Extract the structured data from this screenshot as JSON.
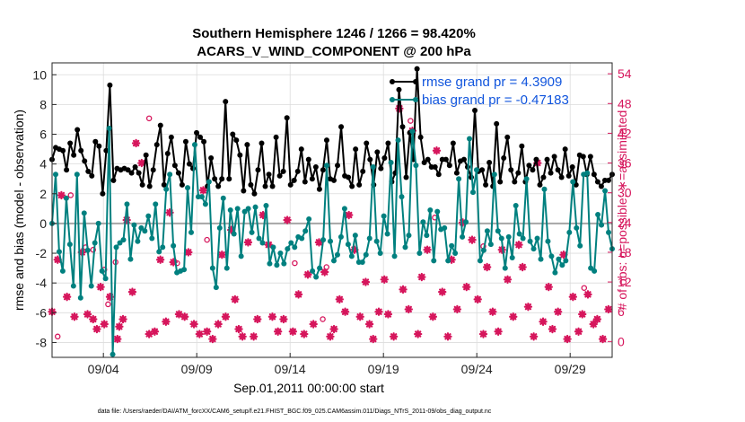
{
  "chart_data": {
    "type": "line",
    "title_line1": "Southern Hemisphere 1246 / 1266 = 98.420%",
    "title_line2": "ACARS_V_WIND_COMPONENT @ 200 hPa",
    "ylabel_left": "rmse and bias (model - observation)",
    "ylabel_right": "# of obs: o=possible; ∗=assimilated",
    "xlabel": "Sep.01,2011 00:00:00 start",
    "footnote": "data file: /Users/raeder/DAI/ATM_forcXX/CAM6_setup/f.e21.FHIST_BGC.f09_025.CAM6assim.011/Diags_NTrS_2011-09/obs_diag_output.nc",
    "ylim_left": [
      -9,
      10.8
    ],
    "yticks_left": [
      "-8",
      "-6",
      "-4",
      "-2",
      "0",
      "2",
      "4",
      "6",
      "8",
      "10"
    ],
    "ylim_right": [
      -3.2,
      56.2
    ],
    "yticks_right": [
      "0",
      "6",
      "12",
      "18",
      "24",
      "30",
      "36",
      "42",
      "48",
      "54"
    ],
    "xlim_days": [
      0,
      30
    ],
    "xtick_labels": [
      "09/04",
      "09/09",
      "09/14",
      "09/19",
      "09/24",
      "09/29"
    ],
    "xtick_days": [
      2.75,
      7.75,
      12.75,
      17.75,
      22.75,
      27.75
    ],
    "grid": true,
    "legend_position": "top-right",
    "series": [
      {
        "name": "rmse grand pr = 4.3909",
        "color": "#000000",
        "values": [
          4.3,
          5.1,
          5.0,
          4.9,
          3.6,
          5.4,
          4.6,
          6.3,
          4.9,
          4.2,
          3.5,
          3.2,
          5.5,
          5.2,
          2.0,
          4.9,
          9.3,
          2.9,
          3.7,
          3.6,
          3.7,
          3.6,
          3.4,
          3.8,
          3.4,
          2.6,
          4.6,
          2.5,
          3.6,
          5.3,
          6.6,
          2.6,
          4.7,
          5.8,
          3.9,
          3.4,
          2.6,
          5.5,
          4.0,
          3.7,
          6.1,
          5.8,
          5.5,
          2.5,
          4.4,
          3.0,
          2.5,
          3.0,
          8.2,
          3.0,
          6.0,
          5.6,
          4.6,
          2.2,
          5.3,
          2.6,
          2.0,
          3.6,
          5.4,
          2.5,
          3.3,
          2.5,
          5.8,
          3.2,
          3.5,
          7.1,
          2.6,
          2.9,
          3.5,
          5.0,
          2.8,
          4.3,
          3.0,
          3.8,
          2.3,
          3.6,
          5.6,
          3.0,
          2.9,
          3.9,
          6.5,
          3.2,
          3.1,
          2.5,
          5.0,
          2.6,
          3.5,
          5.4,
          4.3,
          2.6,
          4.8,
          3.7,
          4.4,
          5.4,
          2.8,
          3.4,
          9.0,
          6.5,
          3.1,
          6.1,
          4.3,
          10.4,
          5.8,
          4.1,
          4.3,
          3.8,
          3.8,
          3.3,
          4.3,
          4.3,
          3.9,
          5.4,
          3.4,
          4.2,
          4.3,
          3.8,
          3.1,
          7.6,
          3.5,
          3.6,
          2.6,
          4.1,
          2.5,
          6.7,
          2.8,
          4.4,
          5.8,
          3.6,
          2.8,
          3.4,
          5.2,
          2.8,
          3.9,
          3.6,
          4.3,
          2.6,
          3.1,
          4.3,
          3.4,
          4.5,
          3.6,
          3.1,
          5.0,
          3.2,
          3.8,
          2.6,
          4.6,
          4.5,
          3.3,
          4.5,
          3.3,
          2.8,
          2.5,
          2.9,
          2.9,
          3.3
        ]
      },
      {
        "name": "bias grand pr = -0.47183",
        "color": "#00807f",
        "values": [
          0.0,
          3.3,
          -1.9,
          -3.2,
          1.7,
          -1.4,
          -4.2,
          3.3,
          -5.0,
          0.7,
          -1.8,
          -4.2,
          -1.3,
          0.0,
          -3.2,
          -3.7,
          6.4,
          -8.8,
          -1.6,
          -1.3,
          -1.1,
          1.3,
          -2.4,
          -0.1,
          -1.2,
          -0.3,
          -0.5,
          0.5,
          -1.0,
          1.3,
          -1.9,
          -1.6,
          2.3,
          3.3,
          -1.5,
          -3.3,
          -3.2,
          -3.1,
          2.4,
          -0.6,
          5.3,
          1.8,
          1.8,
          1.3,
          2.8,
          -3.0,
          -4.3,
          -0.3,
          1.7,
          -3.0,
          0.9,
          -0.7,
          1.0,
          -2.2,
          0.8,
          1.0,
          -0.6,
          1.1,
          -1.0,
          -1.3,
          1.2,
          -2.7,
          -1.6,
          -2.8,
          -2.0,
          -2.7,
          -1.7,
          -1.3,
          -1.6,
          -0.9,
          -1.0,
          -0.5,
          0.3,
          -3.2,
          -3.6,
          -3.0,
          -1.1,
          3.9,
          -1.2,
          -2.5,
          -2.1,
          -0.9,
          1.0,
          -1.4,
          -2.2,
          -0.8,
          -2.6,
          -2.6,
          -2.1,
          -1.0,
          3.8,
          -1.2,
          -2.0,
          0.5,
          -0.7,
          4.1,
          -2.2,
          5.6,
          1.8,
          -1.6,
          -0.8,
          6.2,
          3.9,
          -2.0,
          0.1,
          -0.8,
          0.9,
          -2.5,
          0.8,
          -0.4,
          -0.3,
          -2.5,
          -1.5,
          -2.0,
          3.0,
          -0.9,
          0.1,
          5.7,
          2.1,
          3.6,
          -2.5,
          -1.8,
          -0.5,
          -1.4,
          3.3,
          -0.5,
          -1.0,
          -3.0,
          -0.9,
          -2.3,
          1.2,
          -0.7,
          -1.0,
          3.0,
          -1.2,
          -1.7,
          -1.0,
          -2.4,
          2.3,
          -1.2,
          -2.2,
          -3.3,
          -2.4,
          -2.8,
          -2.5,
          -0.6,
          2.8,
          -0.3,
          -1.5,
          3.3,
          3.4,
          -3.0,
          -3.2,
          0.6,
          -0.1,
          2.2,
          -0.6,
          -1.7
        ]
      }
    ],
    "obs_possible": [
      {
        "x": 0.3,
        "y": 1.0
      },
      {
        "x": 1.0,
        "y": 29.5
      },
      {
        "x": 1.8,
        "y": 19.0
      },
      {
        "x": 2.2,
        "y": 18.5
      },
      {
        "x": 2.8,
        "y": 14.5
      },
      {
        "x": 3.0,
        "y": 7.5
      },
      {
        "x": 3.4,
        "y": 16.0
      },
      {
        "x": 5.2,
        "y": 45.0
      },
      {
        "x": 6.7,
        "y": 15.8
      },
      {
        "x": 8.3,
        "y": 20.5
      },
      {
        "x": 13.0,
        "y": 15.8
      },
      {
        "x": 14.5,
        "y": 4.5
      },
      {
        "x": 14.7,
        "y": 15.0
      },
      {
        "x": 19.2,
        "y": 44.5
      },
      {
        "x": 20.5,
        "y": 25.0
      },
      {
        "x": 23.1,
        "y": 19.2
      },
      {
        "x": 28.5,
        "y": 10.8
      }
    ],
    "obs_assimilated": [
      {
        "x": 0.0,
        "y": 6.0
      },
      {
        "x": 0.3,
        "y": 16.5
      },
      {
        "x": 0.5,
        "y": 29.5
      },
      {
        "x": 0.8,
        "y": 9.0
      },
      {
        "x": 1.2,
        "y": 5.0
      },
      {
        "x": 1.6,
        "y": 18.0
      },
      {
        "x": 1.9,
        "y": 5.5
      },
      {
        "x": 2.2,
        "y": 4.5
      },
      {
        "x": 2.4,
        "y": 2.5
      },
      {
        "x": 2.6,
        "y": 11.0
      },
      {
        "x": 2.8,
        "y": 3.5
      },
      {
        "x": 3.1,
        "y": 9.0
      },
      {
        "x": 3.5,
        "y": 0.5
      },
      {
        "x": 3.6,
        "y": 3.0
      },
      {
        "x": 3.8,
        "y": 4.5
      },
      {
        "x": 4.0,
        "y": 24.5
      },
      {
        "x": 4.3,
        "y": 10.0
      },
      {
        "x": 4.5,
        "y": 40.0
      },
      {
        "x": 4.8,
        "y": 36.0
      },
      {
        "x": 5.2,
        "y": 1.5
      },
      {
        "x": 5.5,
        "y": 2.0
      },
      {
        "x": 5.8,
        "y": 16.5
      },
      {
        "x": 6.1,
        "y": 4.0
      },
      {
        "x": 6.3,
        "y": 26.0
      },
      {
        "x": 6.5,
        "y": 16.0
      },
      {
        "x": 6.8,
        "y": 5.5
      },
      {
        "x": 7.1,
        "y": 5.0
      },
      {
        "x": 7.3,
        "y": 18.0
      },
      {
        "x": 7.6,
        "y": 3.5
      },
      {
        "x": 7.9,
        "y": 1.5
      },
      {
        "x": 8.1,
        "y": 30.5
      },
      {
        "x": 8.3,
        "y": 2.0
      },
      {
        "x": 8.6,
        "y": 0.5
      },
      {
        "x": 8.9,
        "y": 3.5
      },
      {
        "x": 9.1,
        "y": 17.5
      },
      {
        "x": 9.3,
        "y": 5.0
      },
      {
        "x": 9.6,
        "y": 22.5
      },
      {
        "x": 9.8,
        "y": 8.5
      },
      {
        "x": 10.0,
        "y": 2.5
      },
      {
        "x": 10.2,
        "y": 1.0
      },
      {
        "x": 10.5,
        "y": 20.0
      },
      {
        "x": 10.8,
        "y": 1.0
      },
      {
        "x": 11.0,
        "y": 4.5
      },
      {
        "x": 11.3,
        "y": 25.5
      },
      {
        "x": 11.6,
        "y": 19.5
      },
      {
        "x": 11.8,
        "y": 5.0
      },
      {
        "x": 12.1,
        "y": 2.0
      },
      {
        "x": 12.4,
        "y": 4.5
      },
      {
        "x": 12.6,
        "y": 24.5
      },
      {
        "x": 12.9,
        "y": 2.0
      },
      {
        "x": 13.2,
        "y": 9.5
      },
      {
        "x": 13.5,
        "y": 1.5
      },
      {
        "x": 13.7,
        "y": 13.5
      },
      {
        "x": 14.0,
        "y": 3.5
      },
      {
        "x": 14.3,
        "y": 20.0
      },
      {
        "x": 14.6,
        "y": 14.0
      },
      {
        "x": 14.9,
        "y": 1.0
      },
      {
        "x": 15.1,
        "y": 2.5
      },
      {
        "x": 15.4,
        "y": 8.5
      },
      {
        "x": 15.7,
        "y": 6.0
      },
      {
        "x": 15.9,
        "y": 25.5
      },
      {
        "x": 16.2,
        "y": 18.5
      },
      {
        "x": 16.5,
        "y": 5.0
      },
      {
        "x": 16.8,
        "y": 12.0
      },
      {
        "x": 17.0,
        "y": 3.5
      },
      {
        "x": 17.2,
        "y": 0.5
      },
      {
        "x": 17.5,
        "y": 6.0
      },
      {
        "x": 17.8,
        "y": 12.5
      },
      {
        "x": 18.0,
        "y": 5.5
      },
      {
        "x": 18.3,
        "y": 1.0
      },
      {
        "x": 18.6,
        "y": 47.0
      },
      {
        "x": 18.8,
        "y": 10.5
      },
      {
        "x": 19.1,
        "y": 6.5
      },
      {
        "x": 19.3,
        "y": 42.5
      },
      {
        "x": 19.6,
        "y": 1.5
      },
      {
        "x": 19.8,
        "y": 13.0
      },
      {
        "x": 20.1,
        "y": 18.5
      },
      {
        "x": 20.4,
        "y": 5.0
      },
      {
        "x": 20.6,
        "y": 38.5
      },
      {
        "x": 20.9,
        "y": 10.0
      },
      {
        "x": 21.2,
        "y": 1.0
      },
      {
        "x": 21.4,
        "y": 16.5
      },
      {
        "x": 21.7,
        "y": 6.5
      },
      {
        "x": 22.0,
        "y": 24.0
      },
      {
        "x": 22.2,
        "y": 11.0
      },
      {
        "x": 22.5,
        "y": 20.5
      },
      {
        "x": 22.8,
        "y": 8.5
      },
      {
        "x": 23.1,
        "y": 1.5
      },
      {
        "x": 23.3,
        "y": 15.0
      },
      {
        "x": 23.6,
        "y": 6.0
      },
      {
        "x": 23.9,
        "y": 2.0
      },
      {
        "x": 24.1,
        "y": 18.5
      },
      {
        "x": 24.4,
        "y": 12.5
      },
      {
        "x": 24.7,
        "y": 5.0
      },
      {
        "x": 25.0,
        "y": 19.5
      },
      {
        "x": 25.2,
        "y": 15.0
      },
      {
        "x": 25.5,
        "y": 7.0
      },
      {
        "x": 25.8,
        "y": 1.0
      },
      {
        "x": 26.0,
        "y": 36.0
      },
      {
        "x": 26.3,
        "y": 4.0
      },
      {
        "x": 26.6,
        "y": 11.0
      },
      {
        "x": 26.8,
        "y": 2.5
      },
      {
        "x": 27.1,
        "y": 6.0
      },
      {
        "x": 27.4,
        "y": 17.5
      },
      {
        "x": 27.6,
        "y": 0.5
      },
      {
        "x": 27.9,
        "y": 9.0
      },
      {
        "x": 28.2,
        "y": 2.0
      },
      {
        "x": 28.4,
        "y": 5.5
      },
      {
        "x": 28.7,
        "y": 9.5
      },
      {
        "x": 29.0,
        "y": 3.5
      },
      {
        "x": 29.2,
        "y": 4.5
      },
      {
        "x": 29.5,
        "y": 0.5
      },
      {
        "x": 29.8,
        "y": 6.5
      }
    ]
  }
}
